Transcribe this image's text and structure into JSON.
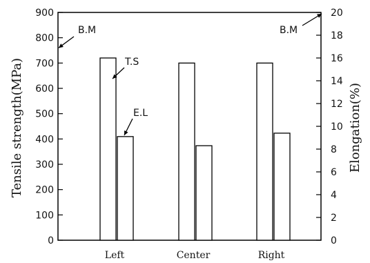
{
  "chart_data": {
    "type": "bar",
    "categories": [
      "Left",
      "Center",
      "Right"
    ],
    "series": [
      {
        "name": "T.S",
        "axis": "left",
        "values": [
          720,
          700,
          700
        ]
      },
      {
        "name": "E.L",
        "axis": "right",
        "values": [
          9.1,
          8.3,
          9.4
        ]
      }
    ],
    "ylabel": "Tensile strength(MPa)",
    "ylabel_right": "Elongation(%)",
    "ylim": [
      0,
      900
    ],
    "ylim_right": [
      0,
      20
    ],
    "yticks": [
      "0",
      "100",
      "200",
      "300",
      "400",
      "500",
      "600",
      "700",
      "800",
      "900"
    ],
    "yticks_right": [
      "0",
      "2",
      "4",
      "6",
      "8",
      "10",
      "12",
      "14",
      "16",
      "18",
      "20"
    ],
    "annotations": [
      {
        "text": "B.M",
        "axis": "left",
        "value": 760
      },
      {
        "text": "B.M",
        "axis": "right",
        "value": 20
      }
    ],
    "grid": false,
    "colors": {
      "bar_fill": "#ffffff",
      "stroke": "#000000"
    }
  }
}
